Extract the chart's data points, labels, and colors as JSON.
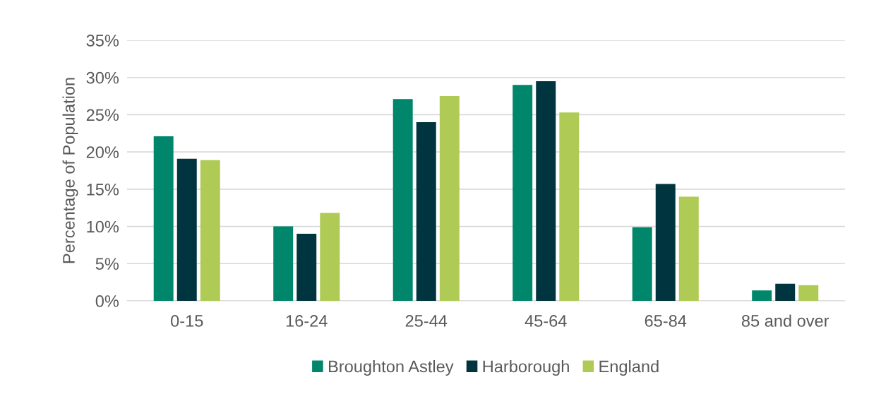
{
  "chart_data": {
    "type": "bar",
    "ylabel": "Percentage of Population",
    "categories": [
      "0-15",
      "16-24",
      "25-44",
      "45-64",
      "65-84",
      "85 and over"
    ],
    "series": [
      {
        "name": "Broughton Astley",
        "color": "#00866a",
        "values": [
          22.1,
          10.0,
          27.1,
          29.0,
          9.9,
          1.4
        ]
      },
      {
        "name": "Harborough",
        "color": "#00343e",
        "values": [
          19.1,
          9.0,
          24.0,
          29.5,
          15.7,
          2.3
        ]
      },
      {
        "name": "England",
        "color": "#b0cb55",
        "values": [
          18.9,
          11.8,
          27.5,
          25.3,
          14.0,
          2.1
        ]
      }
    ],
    "ylim": [
      0,
      35
    ],
    "yticks": [
      {
        "value": 0,
        "label": "0%"
      },
      {
        "value": 5,
        "label": "5%"
      },
      {
        "value": 10,
        "label": "10%"
      },
      {
        "value": 15,
        "label": "15%"
      },
      {
        "value": 20,
        "label": "20%"
      },
      {
        "value": 25,
        "label": "25%"
      },
      {
        "value": 30,
        "label": "30%"
      },
      {
        "value": 35,
        "label": "35%"
      }
    ],
    "grid": "y",
    "legend": "bottom"
  }
}
